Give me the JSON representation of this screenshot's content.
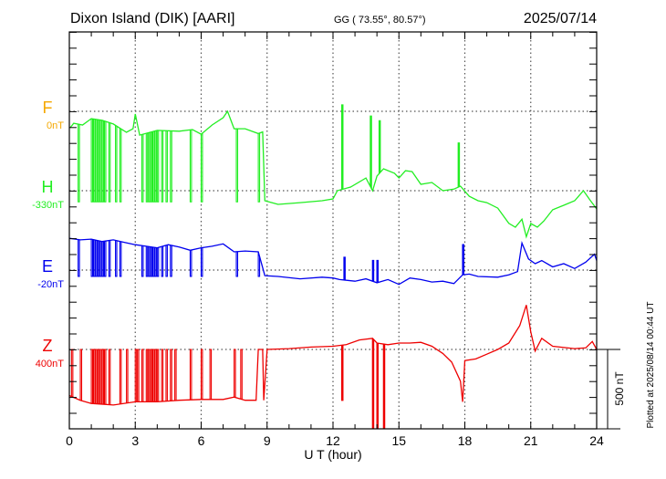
{
  "chart_data": {
    "type": "line",
    "title": "Dixon Island (DIK)  [AARI]",
    "coords": "GG ( 73.55°,  80.57°)",
    "date": "2025/07/14",
    "xlabel": "U T (hour)",
    "xlim": [
      0,
      24
    ],
    "xticks": [
      "0",
      "3",
      "6",
      "9",
      "12",
      "15",
      "18",
      "21",
      "24"
    ],
    "scale_bar": "500 nT",
    "plotted_note": "Plotted at 2025/08/14 00:44 UT",
    "colors": {
      "F": "#f5a800",
      "H": "#22ee22",
      "E": "#0000ee",
      "Z": "#ee0000"
    },
    "series": [
      {
        "name": "F",
        "baseline_label": "0nT",
        "values": [],
        "dropouts": {
          "hours": [],
          "to": 0
        },
        "spikes": []
      },
      {
        "name": "H",
        "baseline_label": "-330nT",
        "values": [
          [
            0.04,
            397
          ],
          [
            0.2,
            425
          ],
          [
            0.6,
            414
          ],
          [
            1.0,
            454
          ],
          [
            1.5,
            443
          ],
          [
            2.0,
            420
          ],
          [
            2.6,
            368
          ],
          [
            2.9,
            390
          ],
          [
            3.0,
            483
          ],
          [
            3.2,
            350
          ],
          [
            4.0,
            380
          ],
          [
            5.0,
            375
          ],
          [
            5.6,
            385
          ],
          [
            6.0,
            356
          ],
          [
            6.5,
            414
          ],
          [
            7.0,
            460
          ],
          [
            7.2,
            500
          ],
          [
            7.5,
            390
          ],
          [
            8.0,
            390
          ],
          [
            8.6,
            360
          ],
          [
            8.8,
            370
          ],
          [
            8.9,
            -63
          ],
          [
            9.5,
            -86
          ],
          [
            10.5,
            -75
          ],
          [
            11.5,
            -63
          ],
          [
            12.0,
            -52
          ],
          [
            12.2,
            0
          ],
          [
            12.8,
            23
          ],
          [
            13.5,
            80
          ],
          [
            13.8,
            0
          ],
          [
            14.0,
            92
          ],
          [
            14.3,
            138
          ],
          [
            14.8,
            110
          ],
          [
            15.0,
            80
          ],
          [
            15.3,
            126
          ],
          [
            15.6,
            120
          ],
          [
            16.0,
            40
          ],
          [
            16.5,
            52
          ],
          [
            17.0,
            0
          ],
          [
            17.5,
            10
          ],
          [
            17.8,
            29
          ],
          [
            18.2,
            -35
          ],
          [
            18.6,
            -63
          ],
          [
            19.0,
            -75
          ],
          [
            19.5,
            -110
          ],
          [
            20.0,
            -206
          ],
          [
            20.3,
            -230
          ],
          [
            20.6,
            -180
          ],
          [
            20.8,
            -290
          ],
          [
            21.0,
            -207
          ],
          [
            21.3,
            -230
          ],
          [
            21.6,
            -190
          ],
          [
            22.0,
            -120
          ],
          [
            22.5,
            -92
          ],
          [
            23.0,
            -63
          ],
          [
            23.4,
            0
          ],
          [
            23.7,
            -60
          ],
          [
            24.0,
            -115
          ]
        ],
        "dropouts": {
          "hours": [
            0.4,
            1.0,
            1.1,
            1.2,
            1.3,
            1.4,
            1.5,
            1.6,
            1.8,
            2.1,
            2.3,
            3.3,
            3.5,
            3.6,
            3.7,
            3.8,
            3.9,
            4.0,
            4.2,
            4.4,
            4.6,
            5.5,
            6.0,
            7.6,
            8.6
          ],
          "to": -70
        },
        "spikes": [
          [
            12.4,
            540
          ],
          [
            13.7,
            470
          ],
          [
            14.1,
            440
          ],
          [
            17.7,
            300
          ]
        ]
      },
      {
        "name": "E",
        "baseline_label": "-20nT",
        "values": [
          [
            0.0,
            200
          ],
          [
            0.5,
            190
          ],
          [
            1.0,
            195
          ],
          [
            1.5,
            180
          ],
          [
            2.0,
            190
          ],
          [
            2.5,
            175
          ],
          [
            3.0,
            160
          ],
          [
            3.5,
            150
          ],
          [
            4.0,
            140
          ],
          [
            4.5,
            160
          ],
          [
            5.0,
            145
          ],
          [
            5.5,
            125
          ],
          [
            6.0,
            140
          ],
          [
            6.5,
            150
          ],
          [
            7.0,
            165
          ],
          [
            7.5,
            115
          ],
          [
            8.0,
            120
          ],
          [
            8.6,
            115
          ],
          [
            8.9,
            -35
          ],
          [
            9.5,
            -40
          ],
          [
            10.5,
            -55
          ],
          [
            11.5,
            -45
          ],
          [
            12.0,
            -50
          ],
          [
            12.3,
            -60
          ],
          [
            13.0,
            -70
          ],
          [
            13.5,
            -55
          ],
          [
            14.0,
            -80
          ],
          [
            14.5,
            -60
          ],
          [
            15.0,
            -90
          ],
          [
            15.5,
            -50
          ],
          [
            16.0,
            -60
          ],
          [
            16.5,
            -75
          ],
          [
            17.0,
            -70
          ],
          [
            17.5,
            -85
          ],
          [
            17.9,
            -30
          ],
          [
            18.2,
            -25
          ],
          [
            18.6,
            -40
          ],
          [
            19.5,
            -45
          ],
          [
            20.0,
            -30
          ],
          [
            20.4,
            -10
          ],
          [
            20.6,
            170
          ],
          [
            20.9,
            70
          ],
          [
            21.2,
            40
          ],
          [
            21.5,
            60
          ],
          [
            22.0,
            20
          ],
          [
            22.5,
            40
          ],
          [
            23.0,
            10
          ],
          [
            23.5,
            50
          ],
          [
            23.9,
            100
          ],
          [
            24.0,
            60
          ]
        ],
        "dropouts": {
          "hours": [
            0.4,
            1.0,
            1.1,
            1.2,
            1.3,
            1.4,
            1.5,
            1.6,
            1.8,
            2.1,
            2.3,
            3.3,
            3.5,
            3.6,
            3.7,
            3.8,
            3.9,
            4.0,
            4.2,
            4.4,
            4.6,
            5.5,
            6.0,
            7.6,
            8.6
          ],
          "to": -40
        },
        "spikes": [
          [
            12.5,
            80
          ],
          [
            13.8,
            60
          ],
          [
            14.0,
            60
          ],
          [
            17.9,
            160
          ]
        ]
      },
      {
        "name": "Z",
        "baseline_label": "400nT",
        "values": [
          [
            0.0,
            -290
          ],
          [
            0.5,
            -320
          ],
          [
            1.0,
            -340
          ],
          [
            2.0,
            -350
          ],
          [
            3.0,
            -330
          ],
          [
            4.0,
            -330
          ],
          [
            5.0,
            -320
          ],
          [
            6.0,
            -315
          ],
          [
            7.0,
            -315
          ],
          [
            7.5,
            -300
          ],
          [
            8.0,
            -320
          ],
          [
            8.5,
            -320
          ],
          [
            8.6,
            0
          ],
          [
            8.8,
            0
          ],
          [
            8.85,
            -320
          ],
          [
            9.0,
            0
          ],
          [
            10.0,
            5
          ],
          [
            11.0,
            15
          ],
          [
            12.0,
            20
          ],
          [
            12.6,
            30
          ],
          [
            13.2,
            60
          ],
          [
            13.8,
            70
          ],
          [
            14.0,
            40
          ],
          [
            14.5,
            30
          ],
          [
            15.0,
            40
          ],
          [
            15.5,
            40
          ],
          [
            16.0,
            45
          ],
          [
            16.5,
            20
          ],
          [
            17.0,
            -25
          ],
          [
            17.4,
            -80
          ],
          [
            17.8,
            -200
          ],
          [
            17.9,
            -330
          ],
          [
            18.0,
            -70
          ],
          [
            18.5,
            -60
          ],
          [
            19.0,
            -30
          ],
          [
            19.5,
            0
          ],
          [
            20.0,
            40
          ],
          [
            20.5,
            150
          ],
          [
            20.8,
            280
          ],
          [
            21.0,
            110
          ],
          [
            21.2,
            -10
          ],
          [
            21.5,
            70
          ],
          [
            22.0,
            20
          ],
          [
            23.0,
            5
          ],
          [
            23.5,
            10
          ],
          [
            23.8,
            50
          ],
          [
            24.0,
            0
          ]
        ],
        "dropouts": {
          "hours": [
            0.1,
            0.5,
            1.0,
            1.1,
            1.2,
            1.3,
            1.4,
            1.5,
            1.6,
            1.8,
            2.3,
            2.6,
            3.0,
            3.1,
            3.3,
            3.5,
            3.6,
            3.7,
            3.8,
            3.9,
            4.0,
            4.2,
            4.4,
            4.6,
            4.8,
            5.5,
            6.0,
            6.4,
            7.5,
            7.8
          ],
          "to": 0
        },
        "spikes": [
          [
            12.4,
            -320
          ],
          [
            13.8,
            -500
          ],
          [
            14.0,
            -500
          ],
          [
            14.3,
            -500
          ]
        ]
      }
    ]
  }
}
